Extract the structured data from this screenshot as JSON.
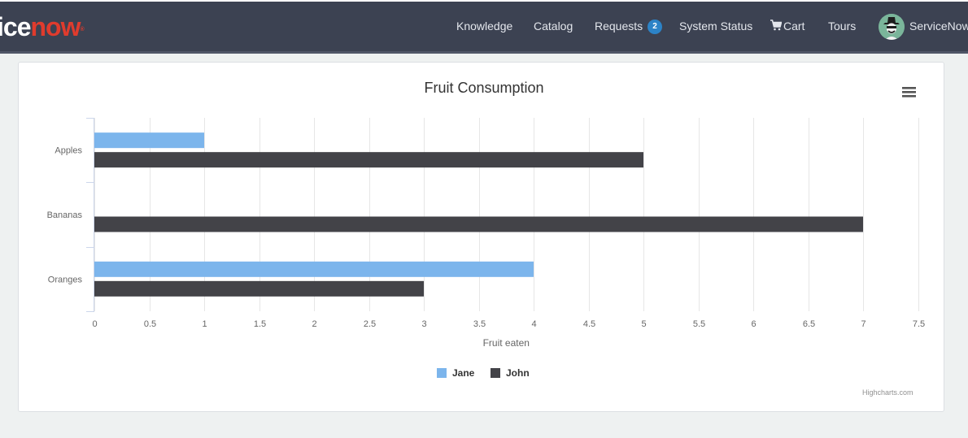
{
  "brand": {
    "part1": "ice",
    "part2": "now",
    "reg": "®"
  },
  "nav": {
    "knowledge": "Knowledge",
    "catalog": "Catalog",
    "requests": "Requests",
    "requests_count": "2",
    "system_status": "System Status",
    "cart": "Cart",
    "tours": "Tours",
    "user": "ServiceNow"
  },
  "colors": {
    "jane": "#7cb5ec",
    "john": "#434348",
    "navbar": "#3c4252"
  },
  "chart_data": {
    "type": "bar",
    "orientation": "horizontal",
    "title": "Fruit Consumption",
    "categories": [
      "Apples",
      "Bananas",
      "Oranges"
    ],
    "series": [
      {
        "name": "Jane",
        "values": [
          1,
          0,
          4
        ]
      },
      {
        "name": "John",
        "values": [
          5,
          7,
          3
        ]
      }
    ],
    "xlabel": "",
    "ylabel": "Fruit eaten",
    "value_ticks": [
      "0",
      "0.5",
      "1",
      "1.5",
      "2",
      "2.5",
      "3",
      "3.5",
      "4",
      "4.5",
      "5",
      "5.5",
      "6",
      "6.5",
      "7",
      "7.5"
    ],
    "ylim": [
      0,
      7.5
    ],
    "grid": true,
    "legend_position": "bottom-center",
    "credits": "Highcharts.com"
  }
}
